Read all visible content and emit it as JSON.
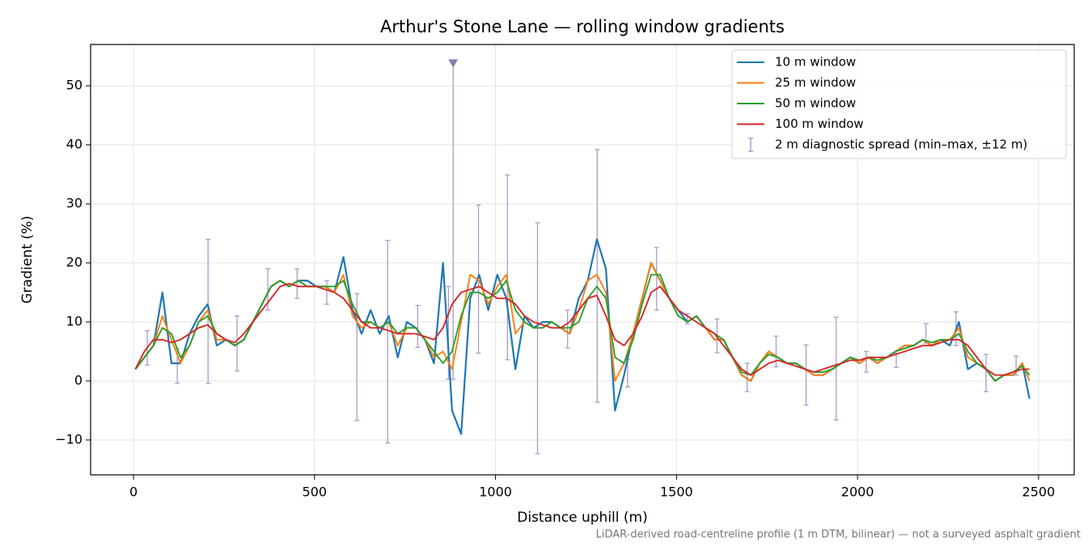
{
  "chart_data": {
    "type": "line",
    "title": "Arthur's Stone Lane — rolling window gradients",
    "xlabel": "Distance uphill (m)",
    "ylabel": "Gradient (%)",
    "footnote": "LiDAR-derived road-centreline profile (1 m DTM, bilinear) — not a surveyed asphalt gradient",
    "xlim": [
      -118.5,
      2598.5
    ],
    "ylim": [
      -15.9,
      57.0
    ],
    "xticks": [
      0,
      500,
      1000,
      1500,
      2000,
      2500
    ],
    "yticks": [
      {
        "value": -10,
        "label": "−10"
      },
      0,
      10,
      20,
      30,
      40,
      50
    ],
    "grid": true,
    "legend": "upper right",
    "x": [
      5,
      30,
      55,
      80,
      105,
      130,
      155,
      180,
      205,
      230,
      255,
      280,
      305,
      330,
      355,
      380,
      405,
      430,
      455,
      480,
      505,
      530,
      555,
      580,
      605,
      630,
      655,
      680,
      705,
      730,
      755,
      780,
      805,
      830,
      855,
      880,
      905,
      930,
      955,
      980,
      1005,
      1030,
      1055,
      1080,
      1105,
      1130,
      1155,
      1180,
      1205,
      1230,
      1255,
      1280,
      1305,
      1330,
      1355,
      1380,
      1405,
      1430,
      1455,
      1480,
      1505,
      1530,
      1555,
      1580,
      1605,
      1630,
      1655,
      1680,
      1705,
      1730,
      1755,
      1780,
      1805,
      1830,
      1855,
      1880,
      1905,
      1930,
      1955,
      1980,
      2005,
      2030,
      2055,
      2080,
      2105,
      2130,
      2155,
      2180,
      2205,
      2230,
      2255,
      2280,
      2305,
      2330,
      2355,
      2380,
      2405,
      2430,
      2455,
      2475
    ],
    "series": [
      {
        "name": "10 m window",
        "color": "#1f77b4",
        "values": [
          2,
          4,
          6,
          15,
          3,
          3,
          8,
          11,
          13,
          6,
          7,
          6,
          7,
          10,
          13,
          16,
          17,
          16,
          17,
          17,
          16,
          16,
          15,
          21,
          12,
          8,
          12,
          8,
          11,
          4,
          10,
          9,
          7,
          3,
          20,
          -5,
          -9,
          14,
          18,
          12,
          18,
          14,
          2,
          11,
          9,
          10,
          10,
          9,
          8,
          14,
          17,
          24,
          19,
          -5,
          1,
          8,
          14,
          20,
          17,
          14,
          12,
          10,
          11,
          9,
          7,
          7,
          4,
          1,
          0,
          3,
          5,
          4,
          3,
          3,
          2,
          1,
          1,
          2,
          3,
          4,
          3,
          4,
          3,
          4,
          5,
          6,
          6,
          7,
          6,
          7,
          6,
          10,
          2,
          3,
          2,
          0,
          1,
          1,
          3,
          -3
        ]
      },
      {
        "name": "25 m window",
        "color": "#ff7f0e",
        "values": [
          2,
          4,
          6,
          11,
          7,
          3,
          6,
          10,
          12,
          7,
          7,
          6,
          7,
          10,
          13,
          16,
          17,
          16,
          17,
          16,
          16,
          16,
          15,
          18,
          11,
          9,
          10,
          9,
          10,
          6,
          9,
          9,
          7,
          4,
          5,
          2,
          10,
          18,
          17,
          13,
          16,
          18,
          8,
          10,
          9,
          9,
          10,
          9,
          8,
          12,
          17,
          18,
          15,
          0,
          3,
          8,
          14,
          20,
          17,
          14,
          11,
          10,
          11,
          9,
          7,
          7,
          4,
          1,
          0,
          3,
          5,
          4,
          3,
          3,
          2,
          1,
          1,
          2,
          3,
          4,
          3,
          4,
          3,
          4,
          5,
          6,
          6,
          7,
          6,
          7,
          7,
          9,
          4,
          3,
          2,
          0,
          1,
          1,
          3,
          0
        ]
      },
      {
        "name": "50 m window",
        "color": "#2ca02c",
        "values": [
          2,
          4,
          6,
          9,
          8,
          4,
          6,
          10,
          11,
          8,
          7,
          6,
          7,
          10,
          13,
          16,
          17,
          16,
          17,
          16,
          16,
          16,
          16,
          17,
          13,
          10,
          10,
          9,
          10,
          8,
          9,
          9,
          7,
          5,
          3,
          5,
          11,
          15,
          15,
          14,
          15,
          17,
          12,
          10,
          9,
          9,
          10,
          9,
          9,
          10,
          14,
          16,
          14,
          4,
          3,
          7,
          13,
          18,
          18,
          14,
          11,
          10,
          11,
          9,
          8,
          7,
          4,
          1.5,
          1,
          3,
          4.5,
          4,
          3,
          3,
          2,
          1.5,
          1.5,
          2,
          3,
          4,
          3.5,
          4,
          3.5,
          4,
          5,
          5.5,
          6,
          7,
          6.5,
          7,
          7,
          8,
          5,
          3,
          2,
          0,
          1,
          1.5,
          2.5,
          1
        ]
      },
      {
        "name": "100 m window",
        "color": "#d62728",
        "values": [
          2,
          5,
          7,
          7,
          6.5,
          7,
          8,
          9,
          9.5,
          8,
          7,
          6.5,
          8,
          10,
          12,
          14,
          16,
          16.5,
          16,
          16,
          16,
          15.5,
          15,
          14,
          12,
          10,
          9,
          9,
          8.5,
          8,
          8,
          8,
          7.5,
          7,
          9,
          13,
          15,
          15.5,
          16,
          15,
          14,
          14,
          13,
          11,
          10,
          9.5,
          9,
          9,
          10,
          12,
          14,
          14.5,
          11,
          7,
          6,
          8,
          11,
          15,
          16,
          14,
          12,
          11,
          10,
          9,
          8,
          6,
          4,
          2,
          1,
          2,
          3,
          3.5,
          3,
          2.5,
          2,
          1.5,
          2,
          2.5,
          3,
          3.5,
          3.5,
          4,
          4,
          4,
          4.5,
          5,
          5.5,
          6,
          6,
          6.5,
          7,
          7,
          6,
          4,
          2,
          1,
          1,
          1.5,
          2,
          2
        ]
      }
    ],
    "errorbars": {
      "name": "2 m diagnostic spread (min–max, ±12 m)",
      "color": "#a89cc8",
      "x": [
        38,
        121,
        206,
        286,
        371,
        452,
        534,
        617,
        702,
        785,
        870,
        883,
        953,
        1033,
        1116,
        1199,
        1281,
        1365,
        1445,
        1530,
        1612,
        1695,
        1775,
        1858,
        1941,
        2024,
        2107,
        2189,
        2272,
        2355,
        2438
      ],
      "lower": [
        2.7,
        -0.4,
        -0.4,
        1.7,
        12,
        14,
        13,
        -6.7,
        -10.5,
        5.7,
        0.3,
        0.3,
        4.7,
        3.6,
        -12.3,
        5.6,
        -3.6,
        -1,
        12,
        9.7,
        4.8,
        -1.8,
        2.4,
        -4.1,
        -6.6,
        1.5,
        2.3,
        6.4,
        6,
        -1.8,
        1
      ],
      "upper": [
        8.5,
        5.5,
        24,
        11,
        19,
        19,
        17,
        14.8,
        23.8,
        12.8,
        16,
        53.8,
        29.8,
        34.9,
        26.8,
        12,
        39.2,
        3.6,
        22.6,
        11.4,
        10.5,
        3,
        7.6,
        6.1,
        10.8,
        5,
        4.7,
        9.7,
        11.7,
        4.5,
        4.2
      ]
    }
  }
}
